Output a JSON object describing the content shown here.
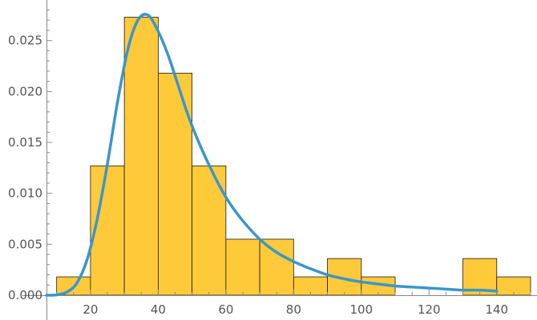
{
  "chart_data": {
    "type": "bar",
    "subtype": "histogram-with-density-curve",
    "title": "",
    "xlabel": "",
    "ylabel": "",
    "xlim": [
      7,
      150
    ],
    "ylim": [
      0,
      0.028
    ],
    "x_ticks": [
      20,
      40,
      60,
      80,
      100,
      120,
      140
    ],
    "x_tick_labels": [
      "20",
      "40",
      "60",
      "80",
      "100",
      "120",
      "140"
    ],
    "y_ticks": [
      0,
      0.005,
      0.01,
      0.015,
      0.02,
      0.025
    ],
    "y_tick_labels": [
      "0.000",
      "0.005",
      "0.010",
      "0.015",
      "0.020",
      "0.025"
    ],
    "bins": [
      {
        "x0": 10,
        "x1": 20,
        "value": 0.0018
      },
      {
        "x0": 20,
        "x1": 30,
        "value": 0.0127
      },
      {
        "x0": 30,
        "x1": 40,
        "value": 0.0273
      },
      {
        "x0": 40,
        "x1": 50,
        "value": 0.0218
      },
      {
        "x0": 50,
        "x1": 60,
        "value": 0.0127
      },
      {
        "x0": 60,
        "x1": 70,
        "value": 0.0055
      },
      {
        "x0": 70,
        "x1": 80,
        "value": 0.0055
      },
      {
        "x0": 80,
        "x1": 90,
        "value": 0.0018
      },
      {
        "x0": 90,
        "x1": 100,
        "value": 0.0036
      },
      {
        "x0": 100,
        "x1": 110,
        "value": 0.0018
      },
      {
        "x0": 130,
        "x1": 140,
        "value": 0.0036
      },
      {
        "x0": 140,
        "x1": 150,
        "value": 0.0018
      }
    ],
    "curve": {
      "x": [
        7,
        10,
        13,
        16,
        19,
        22,
        25,
        28,
        31,
        34,
        37,
        40,
        43,
        46,
        49,
        52,
        55,
        58,
        61,
        65,
        70,
        75,
        80,
        85,
        90,
        95,
        100,
        105,
        110,
        115,
        120,
        125,
        130,
        135,
        140
      ],
      "y": [
        0.0,
        3e-05,
        0.0003,
        0.0012,
        0.0035,
        0.0075,
        0.0129,
        0.019,
        0.0241,
        0.027,
        0.0275,
        0.0259,
        0.0235,
        0.0205,
        0.0175,
        0.015,
        0.0128,
        0.0108,
        0.0091,
        0.0073,
        0.0055,
        0.0042,
        0.0033,
        0.0026,
        0.002,
        0.0016,
        0.0013,
        0.0011,
        0.0009,
        0.0008,
        0.0007,
        0.0006,
        0.0005,
        0.0005,
        0.0004
      ]
    },
    "grid": false,
    "legend": "none"
  },
  "colors": {
    "bar_fill": "#ffca3a",
    "bar_edge": "#1a1a1a",
    "curve": "#3a96cc",
    "axis": "#888888",
    "tick_text": "#555555"
  }
}
